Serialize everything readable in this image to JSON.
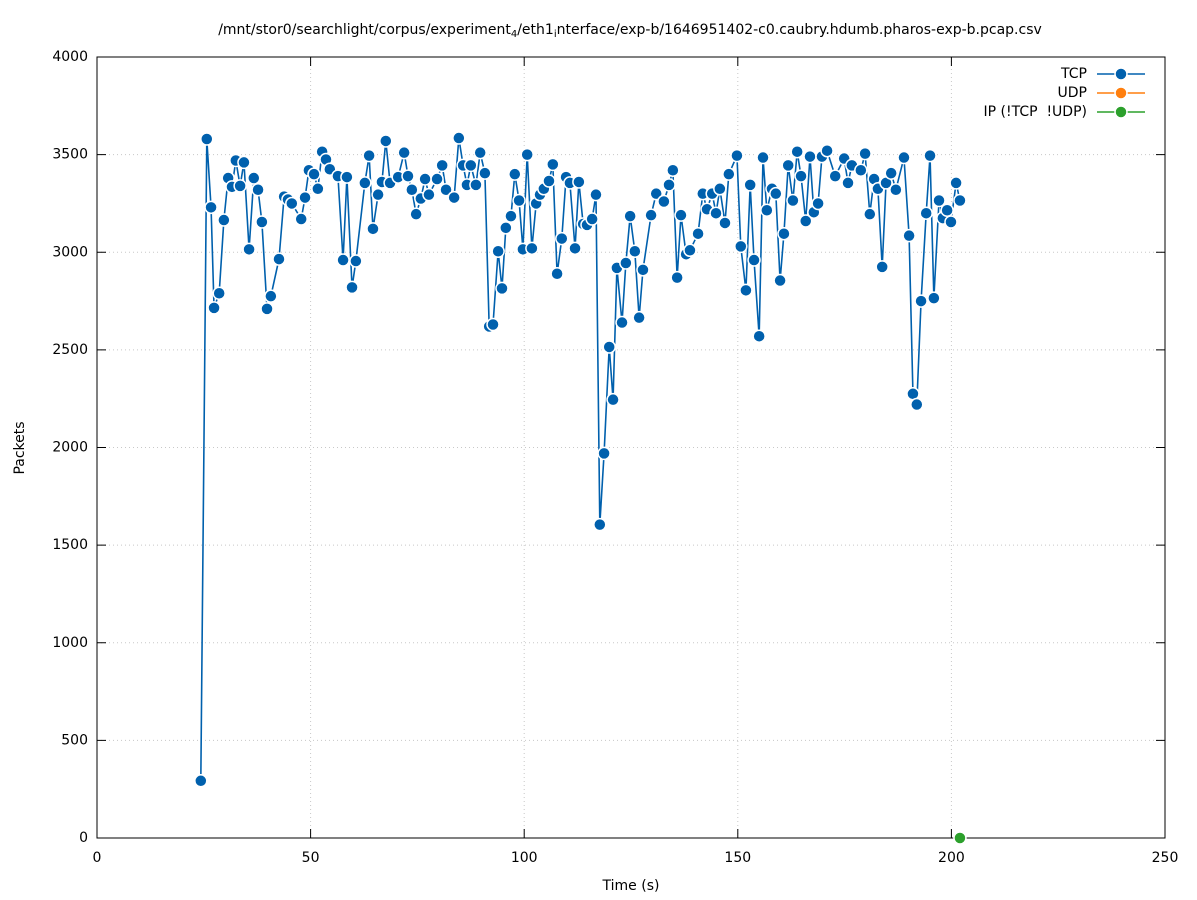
{
  "chart_data": {
    "type": "linespoints",
    "title": [
      {
        "text": "/mnt/stor0/searchlight/corpus/experiment"
      },
      {
        "text": "4",
        "subscript": true
      },
      {
        "text": "/eth1"
      },
      {
        "text": "i",
        "subscript": true
      },
      {
        "text": "nterface/exp-b/1646951402-c0.caubry.hdumb.pharos-exp-b.pcap.csv"
      }
    ],
    "x_label": "Time (s)",
    "y_label": "Packets",
    "xlim": [
      0,
      250
    ],
    "xticks": [
      0,
      50,
      100,
      150,
      200,
      250
    ],
    "ylim": [
      0,
      4000
    ],
    "yticks": [
      0,
      500,
      1000,
      1500,
      2000,
      2500,
      3000,
      3500,
      4000
    ],
    "grid": true,
    "legend": "top-right",
    "series": [
      {
        "name": "TCP",
        "color": "#0060ad",
        "x": [
          24.3,
          25.7,
          26.7,
          27.4,
          28.6,
          29.7,
          30.7,
          31.6,
          32.5,
          33.5,
          34.4,
          35.6,
          36.7,
          37.7,
          38.6,
          39.8,
          40.7,
          42.6,
          43.8,
          44.7,
          45.6,
          47.8,
          48.7,
          49.6,
          50.8,
          51.7,
          52.7,
          53.6,
          54.5,
          56.4,
          57.6,
          58.5,
          59.7,
          60.6,
          62.7,
          63.7,
          64.6,
          65.8,
          66.7,
          67.6,
          68.6,
          70.5,
          71.9,
          72.8,
          73.7,
          74.7,
          75.8,
          76.8,
          77.7,
          79.6,
          80.8,
          81.7,
          83.6,
          84.7,
          85.7,
          86.6,
          87.5,
          88.7,
          89.7,
          90.8,
          91.8,
          92.7,
          93.9,
          94.8,
          95.7,
          96.9,
          97.8,
          98.8,
          99.7,
          100.7,
          101.8,
          102.8,
          103.7,
          104.6,
          105.8,
          106.7,
          107.7,
          108.8,
          109.8,
          110.7,
          111.9,
          112.8,
          113.8,
          114.7,
          115.9,
          116.8,
          117.7,
          118.7,
          119.9,
          120.8,
          121.7,
          122.9,
          123.8,
          124.8,
          125.9,
          126.9,
          127.8,
          129.7,
          130.9,
          132.7,
          133.9,
          134.8,
          135.8,
          136.7,
          137.9,
          138.8,
          140.7,
          141.8,
          142.8,
          144.0,
          144.9,
          145.8,
          147.0,
          147.9,
          149.8,
          150.7,
          151.9,
          152.9,
          153.8,
          155.0,
          155.9,
          156.8,
          158.0,
          158.9,
          159.9,
          160.8,
          161.8,
          162.9,
          163.9,
          164.8,
          165.9,
          166.9,
          167.8,
          168.8,
          169.7,
          170.9,
          172.8,
          174.9,
          175.8,
          176.7,
          178.8,
          179.8,
          180.9,
          181.9,
          182.8,
          183.8,
          184.7,
          185.9,
          187.0,
          188.9,
          190.1,
          191.0,
          191.9,
          192.9,
          194.1,
          195.0,
          195.9,
          197.1,
          198.0,
          199.0,
          199.9,
          201.1,
          202.0
        ],
        "values": [
          293,
          3580,
          3230,
          2715,
          2790,
          3165,
          3380,
          3335,
          3470,
          3340,
          3460,
          3015,
          3380,
          3320,
          3155,
          2710,
          2775,
          2965,
          3285,
          3270,
          3250,
          3170,
          3280,
          3420,
          3400,
          3325,
          3515,
          3475,
          3425,
          3390,
          2960,
          3385,
          2820,
          2955,
          3355,
          3495,
          3120,
          3295,
          3360,
          3570,
          3355,
          3385,
          3510,
          3390,
          3320,
          3195,
          3275,
          3375,
          3295,
          3375,
          3445,
          3320,
          3280,
          3585,
          3445,
          3345,
          3445,
          3345,
          3510,
          3405,
          2620,
          2630,
          3005,
          2815,
          3125,
          3185,
          3400,
          3265,
          3015,
          3500,
          3020,
          3250,
          3295,
          3325,
          3365,
          3450,
          2890,
          3070,
          3385,
          3355,
          3020,
          3360,
          3145,
          3140,
          3170,
          3295,
          1605,
          1970,
          2515,
          2245,
          2920,
          2640,
          2945,
          3185,
          3005,
          2665,
          2910,
          3190,
          3300,
          3260,
          3345,
          3420,
          2870,
          3190,
          2990,
          3010,
          3095,
          3300,
          3220,
          3300,
          3200,
          3325,
          3150,
          3400,
          3495,
          3030,
          2805,
          3345,
          2960,
          2570,
          3485,
          3215,
          3325,
          3300,
          2855,
          3095,
          3445,
          3265,
          3515,
          3390,
          3160,
          3490,
          3205,
          3250,
          3490,
          3520,
          3390,
          3480,
          3355,
          3445,
          3420,
          3505,
          3195,
          3375,
          3325,
          2925,
          3355,
          3405,
          3320,
          3485,
          3085,
          2275,
          2220,
          2750,
          3200,
          3495,
          2765,
          3265,
          3175,
          3215,
          3155,
          3355,
          3265
        ]
      },
      {
        "name": "UDP",
        "color": "#ff7f0e",
        "x": [],
        "values": []
      },
      {
        "name": "IP (!TCP  !UDP)",
        "color": "#2ca02c",
        "x": [
          202.0
        ],
        "values": [
          0
        ]
      }
    ]
  }
}
